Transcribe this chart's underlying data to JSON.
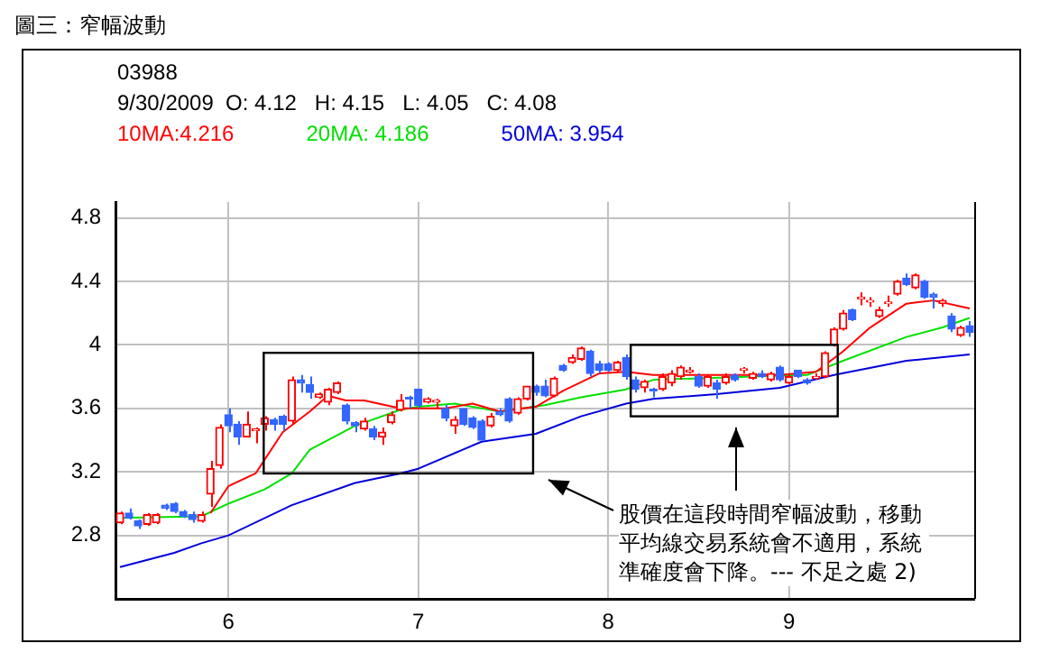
{
  "chart_data": {
    "type": "candlestick",
    "title": "圖三：窄幅波動",
    "annotations": [
      "03988",
      "9/30/2009  O: 4.12   H: 4.15   L: 4.05   C: 4.08",
      "股價在這段時間窄幅波動，移動平均線交易系統會不適用，系統準確度會下降。--- 不足之處 2)"
    ],
    "categories": [
      null,
      null,
      null,
      null,
      null,
      null,
      null,
      null,
      null,
      null,
      null,
      null,
      "6",
      null,
      null,
      null,
      null,
      null,
      null,
      null,
      null,
      null,
      null,
      null,
      null,
      null,
      null,
      null,
      null,
      null,
      null,
      null,
      null,
      "7",
      null,
      null,
      null,
      null,
      null,
      null,
      null,
      null,
      null,
      null,
      null,
      null,
      null,
      null,
      null,
      null,
      null,
      null,
      null,
      null,
      "8",
      null,
      null,
      null,
      null,
      null,
      null,
      null,
      null,
      null,
      null,
      null,
      null,
      null,
      null,
      null,
      null,
      null,
      null,
      null,
      "9",
      null,
      null,
      null,
      null,
      null,
      null,
      null,
      null,
      null,
      null,
      null,
      null,
      null,
      null,
      null,
      null,
      null,
      null,
      null,
      null
    ],
    "ohlc": [
      [
        2.88,
        2.95,
        2.87,
        2.94
      ],
      [
        2.94,
        2.97,
        2.9,
        2.91
      ],
      [
        2.89,
        2.9,
        2.84,
        2.86
      ],
      [
        2.87,
        2.94,
        2.86,
        2.93
      ],
      [
        2.88,
        2.94,
        2.87,
        2.93
      ],
      [
        2.99,
        3.0,
        2.96,
        2.97
      ],
      [
        3.0,
        3.01,
        2.94,
        2.95
      ],
      [
        2.95,
        2.96,
        2.91,
        2.92
      ],
      [
        2.93,
        2.95,
        2.88,
        2.9
      ],
      [
        2.89,
        2.95,
        2.88,
        2.93
      ],
      [
        3.06,
        3.27,
        2.98,
        3.22
      ],
      [
        3.24,
        3.5,
        3.22,
        3.48
      ],
      [
        3.56,
        3.6,
        3.45,
        3.49
      ],
      [
        3.5,
        3.52,
        3.37,
        3.42
      ],
      [
        3.42,
        3.58,
        3.42,
        3.5
      ],
      [
        3.46,
        3.48,
        3.38,
        3.47
      ],
      [
        3.5,
        3.55,
        3.46,
        3.54
      ],
      [
        3.53,
        3.54,
        3.46,
        3.5
      ],
      [
        3.55,
        3.56,
        3.46,
        3.5
      ],
      [
        3.52,
        3.8,
        3.5,
        3.78
      ],
      [
        3.78,
        3.81,
        3.7,
        3.76
      ],
      [
        3.75,
        3.8,
        3.66,
        3.7
      ],
      [
        3.67,
        3.7,
        3.66,
        3.69
      ],
      [
        3.64,
        3.73,
        3.62,
        3.72
      ],
      [
        3.7,
        3.77,
        3.69,
        3.76
      ],
      [
        3.62,
        3.63,
        3.5,
        3.52
      ],
      [
        3.51,
        3.52,
        3.45,
        3.49
      ],
      [
        3.47,
        3.54,
        3.46,
        3.52
      ],
      [
        3.47,
        3.49,
        3.4,
        3.42
      ],
      [
        3.42,
        3.48,
        3.37,
        3.45
      ],
      [
        3.51,
        3.58,
        3.5,
        3.56
      ],
      [
        3.59,
        3.69,
        3.58,
        3.65
      ],
      [
        3.67,
        3.68,
        3.6,
        3.66
      ],
      [
        3.72,
        3.72,
        3.6,
        3.62
      ],
      [
        3.64,
        3.67,
        3.63,
        3.66
      ],
      [
        3.64,
        3.66,
        3.6,
        3.65
      ],
      [
        3.6,
        3.62,
        3.52,
        3.54
      ],
      [
        3.49,
        3.55,
        3.44,
        3.53
      ],
      [
        3.6,
        3.6,
        3.49,
        3.5
      ],
      [
        3.54,
        3.55,
        3.47,
        3.48
      ],
      [
        3.52,
        3.53,
        3.4,
        3.4
      ],
      [
        3.49,
        3.57,
        3.48,
        3.55
      ],
      [
        3.58,
        3.6,
        3.55,
        3.56
      ],
      [
        3.66,
        3.67,
        3.51,
        3.52
      ],
      [
        3.57,
        3.67,
        3.56,
        3.66
      ],
      [
        3.66,
        3.74,
        3.65,
        3.74
      ],
      [
        3.74,
        3.75,
        3.68,
        3.7
      ],
      [
        3.74,
        3.78,
        3.67,
        3.68
      ],
      [
        3.68,
        3.8,
        3.67,
        3.79
      ],
      [
        3.87,
        3.88,
        3.83,
        3.84
      ],
      [
        3.89,
        3.94,
        3.88,
        3.92
      ],
      [
        3.91,
        3.99,
        3.9,
        3.98
      ],
      [
        3.96,
        3.97,
        3.8,
        3.82
      ],
      [
        3.88,
        3.9,
        3.82,
        3.84
      ],
      [
        3.88,
        3.89,
        3.83,
        3.84
      ],
      [
        3.84,
        3.9,
        3.83,
        3.89
      ],
      [
        3.92,
        3.94,
        3.78,
        3.8
      ],
      [
        3.78,
        3.8,
        3.7,
        3.72
      ],
      [
        3.73,
        3.78,
        3.7,
        3.77
      ],
      [
        3.72,
        3.73,
        3.67,
        3.71
      ],
      [
        3.72,
        3.82,
        3.71,
        3.8
      ],
      [
        3.76,
        3.84,
        3.74,
        3.82
      ],
      [
        3.8,
        3.87,
        3.78,
        3.86
      ],
      [
        3.83,
        3.86,
        3.82,
        3.84
      ],
      [
        3.8,
        3.82,
        3.73,
        3.74
      ],
      [
        3.74,
        3.81,
        3.73,
        3.8
      ],
      [
        3.76,
        3.78,
        3.66,
        3.72
      ],
      [
        3.76,
        3.82,
        3.75,
        3.8
      ],
      [
        3.81,
        3.82,
        3.77,
        3.78
      ],
      [
        3.84,
        3.86,
        3.82,
        3.85
      ],
      [
        3.79,
        3.83,
        3.78,
        3.82
      ],
      [
        3.82,
        3.84,
        3.79,
        3.8
      ],
      [
        3.78,
        3.83,
        3.77,
        3.82
      ],
      [
        3.86,
        3.87,
        3.77,
        3.78
      ],
      [
        3.76,
        3.81,
        3.75,
        3.8
      ],
      [
        3.84,
        3.84,
        3.79,
        3.8
      ],
      [
        3.78,
        3.79,
        3.75,
        3.76
      ],
      [
        3.79,
        3.82,
        3.78,
        3.8
      ],
      [
        3.8,
        3.96,
        3.79,
        3.95
      ],
      [
        4.0,
        4.11,
        3.99,
        4.1
      ],
      [
        4.1,
        4.22,
        4.09,
        4.2
      ],
      [
        4.22,
        4.23,
        4.15,
        4.16
      ],
      [
        4.29,
        4.33,
        4.25,
        4.3
      ],
      [
        4.27,
        4.3,
        4.24,
        4.28
      ],
      [
        4.18,
        4.24,
        4.17,
        4.22
      ],
      [
        4.26,
        4.31,
        4.24,
        4.27
      ],
      [
        4.32,
        4.41,
        4.31,
        4.4
      ],
      [
        4.42,
        4.45,
        4.37,
        4.38
      ],
      [
        4.36,
        4.45,
        4.35,
        4.44
      ],
      [
        4.4,
        4.41,
        4.29,
        4.3
      ],
      [
        4.32,
        4.33,
        4.23,
        4.3
      ],
      [
        4.26,
        4.29,
        4.24,
        4.28
      ],
      [
        4.18,
        4.2,
        4.08,
        4.1
      ],
      [
        4.06,
        4.12,
        4.05,
        4.11
      ],
      [
        4.12,
        4.15,
        4.05,
        4.08
      ]
    ],
    "colors": [
      "#ff0000",
      "#3366ff",
      "#3366ff",
      "#ff0000",
      "#ff0000",
      "#3366ff",
      "#3366ff",
      "#3366ff",
      "#3366ff",
      "#ff0000",
      "#ff0000",
      "#ff0000",
      "#3366ff",
      "#3366ff",
      "#ff0000",
      "#ff0000",
      "#ff0000",
      "#3366ff",
      "#3366ff",
      "#ff0000",
      "#3366ff",
      "#3366ff",
      "#ff0000",
      "#ff0000",
      "#ff0000",
      "#3366ff",
      "#3366ff",
      "#ff0000",
      "#3366ff",
      "#ff0000",
      "#ff0000",
      "#ff0000",
      "#3366ff",
      "#3366ff",
      "#ff0000",
      "#ff0000",
      "#3366ff",
      "#ff0000",
      "#3366ff",
      "#3366ff",
      "#3366ff",
      "#ff0000",
      "#3366ff",
      "#3366ff",
      "#ff0000",
      "#ff0000",
      "#3366ff",
      "#3366ff",
      "#ff0000",
      "#3366ff",
      "#ff0000",
      "#ff0000",
      "#3366ff",
      "#3366ff",
      "#3366ff",
      "#ff0000",
      "#3366ff",
      "#3366ff",
      "#ff0000",
      "#3366ff",
      "#ff0000",
      "#ff0000",
      "#ff0000",
      "#ff0000",
      "#3366ff",
      "#ff0000",
      "#3366ff",
      "#ff0000",
      "#3366ff",
      "#ff0000",
      "#ff0000",
      "#3366ff",
      "#ff0000",
      "#3366ff",
      "#ff0000",
      "#3366ff",
      "#3366ff",
      "#ff0000",
      "#ff0000",
      "#ff0000",
      "#ff0000",
      "#3366ff",
      "#ff0000",
      "#ff0000",
      "#ff0000",
      "#ff0000",
      "#ff0000",
      "#3366ff",
      "#ff0000",
      "#3366ff",
      "#3366ff",
      "#ff0000",
      "#3366ff",
      "#ff0000",
      "#3366ff"
    ],
    "series": [
      {
        "type": "line",
        "name": "10MA:4.216",
        "color": "#ff0000",
        "values": [
          null,
          null,
          null,
          null,
          null,
          null,
          null,
          null,
          null,
          null,
          2.94,
          null,
          3.11,
          null,
          null,
          3.19,
          null,
          null,
          3.45,
          null,
          null,
          3.58,
          null,
          3.68,
          null,
          3.65,
          null,
          3.65,
          null,
          null,
          null,
          3.6,
          null,
          3.6,
          null,
          null,
          3.6,
          null,
          null,
          3.63,
          null,
          null,
          3.58,
          null,
          null,
          null,
          3.61,
          null,
          null,
          3.71,
          null,
          null,
          null,
          3.82,
          null,
          null,
          3.83,
          null,
          null,
          3.81,
          null,
          null,
          null,
          null,
          null,
          null,
          3.81,
          null,
          null,
          null,
          null,
          null,
          null,
          3.81,
          null,
          null,
          null,
          3.83,
          null,
          null,
          3.96,
          null,
          null,
          4.11,
          null,
          null,
          null,
          4.26,
          null,
          null,
          4.28,
          null,
          null,
          null,
          4.23
        ]
      },
      {
        "type": "line",
        "name": "20MA: 4.186",
        "color": "#00e000",
        "values": [
          2.91,
          null,
          null,
          null,
          null,
          null,
          null,
          null,
          null,
          2.92,
          null,
          null,
          3.0,
          null,
          null,
          null,
          3.09,
          null,
          null,
          3.19,
          null,
          3.34,
          null,
          null,
          null,
          null,
          3.49,
          null,
          null,
          null,
          null,
          3.59,
          null,
          3.61,
          null,
          null,
          null,
          3.63,
          null,
          null,
          null,
          null,
          3.58,
          null,
          null,
          null,
          null,
          3.62,
          null,
          null,
          null,
          3.67,
          null,
          null,
          null,
          null,
          3.72,
          null,
          null,
          3.78,
          null,
          null,
          null,
          null,
          null,
          null,
          null,
          null,
          null,
          null,
          3.8,
          null,
          null,
          null,
          null,
          null,
          3.81,
          null,
          null,
          null,
          3.9,
          null,
          null,
          null,
          null,
          null,
          null,
          4.05,
          null,
          null,
          null,
          4.11,
          null,
          null,
          4.17
        ]
      },
      {
        "type": "line",
        "name": "50MA: 3.954",
        "color": "#0000dd",
        "values": [
          2.6,
          null,
          null,
          null,
          null,
          null,
          2.69,
          null,
          null,
          2.75,
          null,
          null,
          2.8,
          null,
          null,
          null,
          null,
          null,
          null,
          2.99,
          null,
          null,
          null,
          null,
          null,
          null,
          3.13,
          null,
          null,
          null,
          null,
          3.19,
          null,
          3.22,
          null,
          null,
          null,
          null,
          null,
          null,
          3.39,
          null,
          null,
          null,
          null,
          null,
          3.44,
          null,
          null,
          null,
          null,
          3.55,
          null,
          null,
          null,
          null,
          3.63,
          null,
          null,
          3.66,
          null,
          null,
          null,
          null,
          null,
          null,
          3.69,
          null,
          null,
          null,
          null,
          null,
          null,
          3.73,
          null,
          null,
          null,
          null,
          null,
          3.81,
          null,
          null,
          null,
          null,
          null,
          null,
          null,
          3.9,
          null,
          null,
          null,
          null,
          null,
          null,
          3.94
        ]
      }
    ],
    "ylim": [
      2.4,
      4.9
    ],
    "yticks": [
      2.8,
      3.2,
      3.6,
      4,
      4.4,
      4.8
    ],
    "grid": true,
    "legend": "top left"
  }
}
